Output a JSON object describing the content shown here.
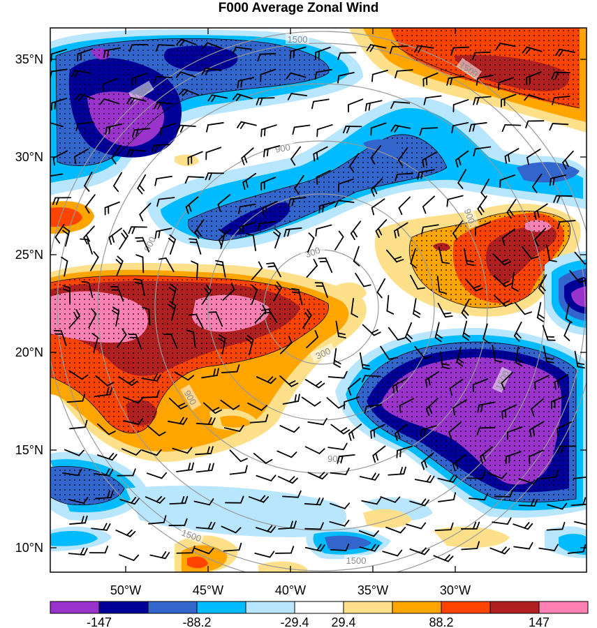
{
  "title": "F000 Average Zonal Wind",
  "axes": {
    "lat_ticks": [
      "35°N",
      "30°N",
      "25°N",
      "20°N",
      "15°N",
      "10°N"
    ],
    "lon_ticks": [
      "50°W",
      "45°W",
      "40°W",
      "35°W",
      "30°W"
    ]
  },
  "colorbar": {
    "colors": [
      "#9933cc",
      "#000099",
      "#3366cc",
      "#00bbff",
      "#b8e6ff",
      "#ffffff",
      "#ffe08a",
      "#ffa500",
      "#ff4400",
      "#b02020",
      "#ff80b3"
    ],
    "labels": [
      "-147",
      "-88.2",
      "-29.4",
      "29.4",
      "88.2",
      "147"
    ]
  },
  "range_rings": {
    "labels": [
      "300",
      "300",
      "900",
      "900",
      "900",
      "900",
      "900",
      "1500",
      "1500",
      "1500",
      "1500",
      "1500",
      "1500"
    ]
  }
}
